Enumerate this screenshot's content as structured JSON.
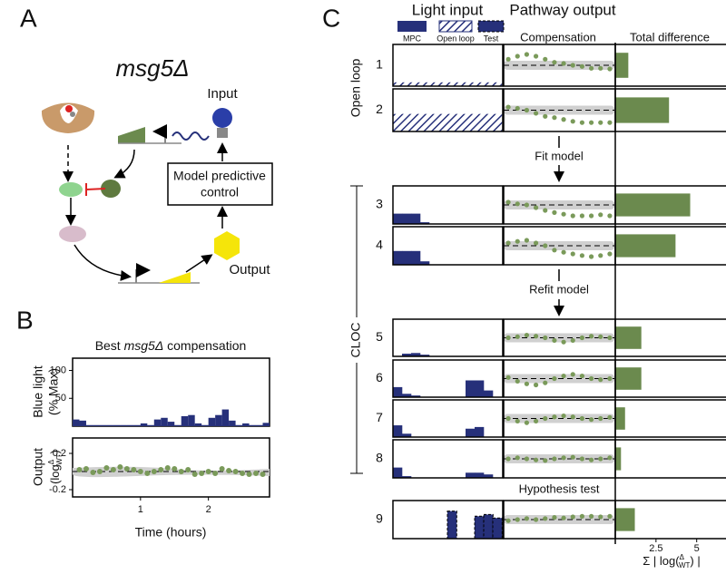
{
  "panel_labels": {
    "a": "A",
    "b": "B",
    "c": "C"
  },
  "panel_a": {
    "strain": "msg5Δ",
    "input": "Input",
    "controller_lines": [
      "Model predictive",
      "control"
    ],
    "output": "Output"
  },
  "panel_b": {
    "title_prefix": "Best",
    "title_strain": "msg5Δ",
    "title_suffix": "compensation",
    "light_ylabel": [
      "Blue light",
      "(% Max)"
    ],
    "output_ylabel": {
      "word": "Output",
      "open": "(log",
      "numerator": "Δ",
      "denominator": "WT",
      "close": ")"
    },
    "xlabel": "Time (hours)",
    "xlim": [
      0,
      2.9
    ],
    "xticks": [
      1,
      2
    ],
    "light_ylim": [
      0,
      122
    ],
    "light_yticks": [
      50,
      100
    ],
    "light_color": "#26307a",
    "output_ylim": [
      -0.28,
      0.37
    ],
    "output_yticks": [
      -0.2,
      0.2
    ],
    "point_color": "#7a9a5a",
    "light": {
      "x": [
        0,
        0.1,
        0.2,
        0.3,
        0.4,
        0.5,
        0.6,
        0.7,
        0.8,
        0.9,
        1.0,
        1.1,
        1.2,
        1.3,
        1.4,
        1.5,
        1.6,
        1.7,
        1.8,
        1.9,
        2.0,
        2.1,
        2.2,
        2.3,
        2.4,
        2.5,
        2.6,
        2.7,
        2.8
      ],
      "values": [
        12,
        10,
        2,
        2,
        2,
        2,
        2,
        2,
        2,
        2,
        5,
        2,
        12,
        15,
        8,
        2,
        18,
        20,
        5,
        2,
        15,
        20,
        30,
        10,
        2,
        5,
        2,
        2,
        6
      ]
    },
    "output": {
      "x": [
        0.1,
        0.2,
        0.3,
        0.4,
        0.5,
        0.6,
        0.7,
        0.8,
        0.9,
        1.0,
        1.1,
        1.2,
        1.3,
        1.4,
        1.5,
        1.6,
        1.7,
        1.8,
        1.9,
        2.0,
        2.1,
        2.2,
        2.3,
        2.4,
        2.5,
        2.6,
        2.7,
        2.8
      ],
      "values": [
        0.02,
        0.03,
        -0.01,
        0.0,
        0.04,
        0.02,
        0.05,
        0.03,
        0.02,
        0.0,
        -0.02,
        0.0,
        0.02,
        0.04,
        0.03,
        0.0,
        0.02,
        -0.03,
        -0.02,
        0.0,
        -0.02,
        0.03,
        0.01,
        0.0,
        -0.02,
        -0.03,
        -0.02,
        -0.03
      ]
    }
  },
  "panel_c": {
    "headers": {
      "light": "Light input",
      "pathway": "Pathway output",
      "compensation": "Compensation",
      "total": "Total difference"
    },
    "legend": {
      "mpc": "MPC",
      "open_loop": "Open loop",
      "test": "Test"
    },
    "groups": {
      "open_loop": "Open loop",
      "cloc": "CLOC"
    },
    "steps": {
      "fit": "Fit model",
      "refit": "Refit model",
      "hypothesis": "Hypothesis test"
    },
    "light_ylim": [
      0,
      100
    ],
    "output_ylim": [
      -0.3,
      0.3
    ],
    "total_xlim": [
      0,
      6.8
    ],
    "total_xticks": [
      2.5,
      5
    ],
    "total_xlabel": {
      "open": "Σ | log(",
      "numerator": "Δ",
      "denominator": "WT",
      "close": ") |"
    },
    "light_color": "#26307a",
    "point_color": "#7a9a5a",
    "bar_color": "#6b8a4e",
    "rows": [
      {
        "label": "1",
        "light_style": "hatched",
        "light": [
          10,
          10,
          10,
          10,
          10,
          10,
          10,
          10,
          10,
          10,
          10,
          10
        ],
        "output": [
          0.1,
          0.15,
          0.18,
          0.15,
          0.1,
          0.05,
          0.03,
          0,
          -0.02,
          -0.05,
          -0.05,
          -0.06
        ],
        "total": 0.8
      },
      {
        "label": "2",
        "light_style": "hatched",
        "light": [
          45,
          45,
          45,
          45,
          45,
          45,
          45,
          45,
          45,
          45,
          45,
          45
        ],
        "output": [
          0.05,
          0.03,
          0,
          -0.05,
          -0.1,
          -0.12,
          -0.15,
          -0.18,
          -0.2,
          -0.2,
          -0.2,
          -0.2
        ],
        "total": 3.3
      },
      {
        "label": "3",
        "light_style": "solid",
        "light": [
          30,
          30,
          30,
          5,
          0,
          0,
          0,
          0,
          0,
          0,
          0,
          0
        ],
        "output": [
          0.05,
          0.02,
          0,
          -0.05,
          -0.1,
          -0.14,
          -0.17,
          -0.2,
          -0.2,
          -0.2,
          -0.18,
          -0.2
        ],
        "total": 4.6
      },
      {
        "label": "4",
        "light_style": "solid",
        "light": [
          40,
          40,
          40,
          10,
          0,
          0,
          0,
          0,
          0,
          0,
          0,
          0
        ],
        "output": [
          0.05,
          0.08,
          0.1,
          0.05,
          0,
          -0.08,
          -0.12,
          -0.15,
          -0.18,
          -0.2,
          -0.18,
          -0.15
        ],
        "total": 3.7
      },
      {
        "label": "5",
        "light_style": "solid",
        "light": [
          0,
          8,
          10,
          5,
          0,
          0,
          0,
          0,
          0,
          0,
          0,
          0
        ],
        "output": [
          0,
          0.02,
          0.05,
          0.03,
          0,
          -0.05,
          -0.08,
          -0.05,
          0,
          0.03,
          0.02,
          0
        ],
        "total": 1.6
      },
      {
        "label": "6",
        "light_style": "solid",
        "light": [
          30,
          10,
          5,
          0,
          0,
          0,
          0,
          0,
          50,
          50,
          20,
          0
        ],
        "output": [
          0.02,
          -0.05,
          -0.1,
          -0.12,
          -0.08,
          0,
          0.05,
          0.08,
          0.05,
          0,
          -0.02,
          0
        ],
        "total": 1.6
      },
      {
        "label": "7",
        "light_style": "solid",
        "light": [
          35,
          10,
          0,
          0,
          0,
          0,
          0,
          0,
          25,
          30,
          0,
          0
        ],
        "output": [
          0,
          -0.05,
          -0.08,
          -0.05,
          0,
          0.03,
          0.05,
          0.03,
          0,
          -0.02,
          0,
          0.02
        ],
        "total": 0.6
      },
      {
        "label": "8",
        "light_style": "solid",
        "light": [
          30,
          5,
          0,
          0,
          0,
          0,
          0,
          0,
          15,
          15,
          10,
          0
        ],
        "output": [
          0,
          0.02,
          0,
          -0.02,
          -0.03,
          0,
          0.02,
          0.03,
          0,
          -0.02,
          0,
          0.02
        ],
        "total": 0.35
      },
      {
        "label": "9",
        "light_style": "test",
        "light": [
          0,
          0,
          0,
          0,
          0,
          0,
          80,
          0,
          0,
          65,
          70,
          60
        ],
        "output": [
          -0.02,
          0,
          0.02,
          0,
          0.02,
          0.04,
          0.03,
          0.05,
          0.06,
          0.06,
          0.05,
          0.06
        ],
        "total": 1.2
      }
    ]
  }
}
